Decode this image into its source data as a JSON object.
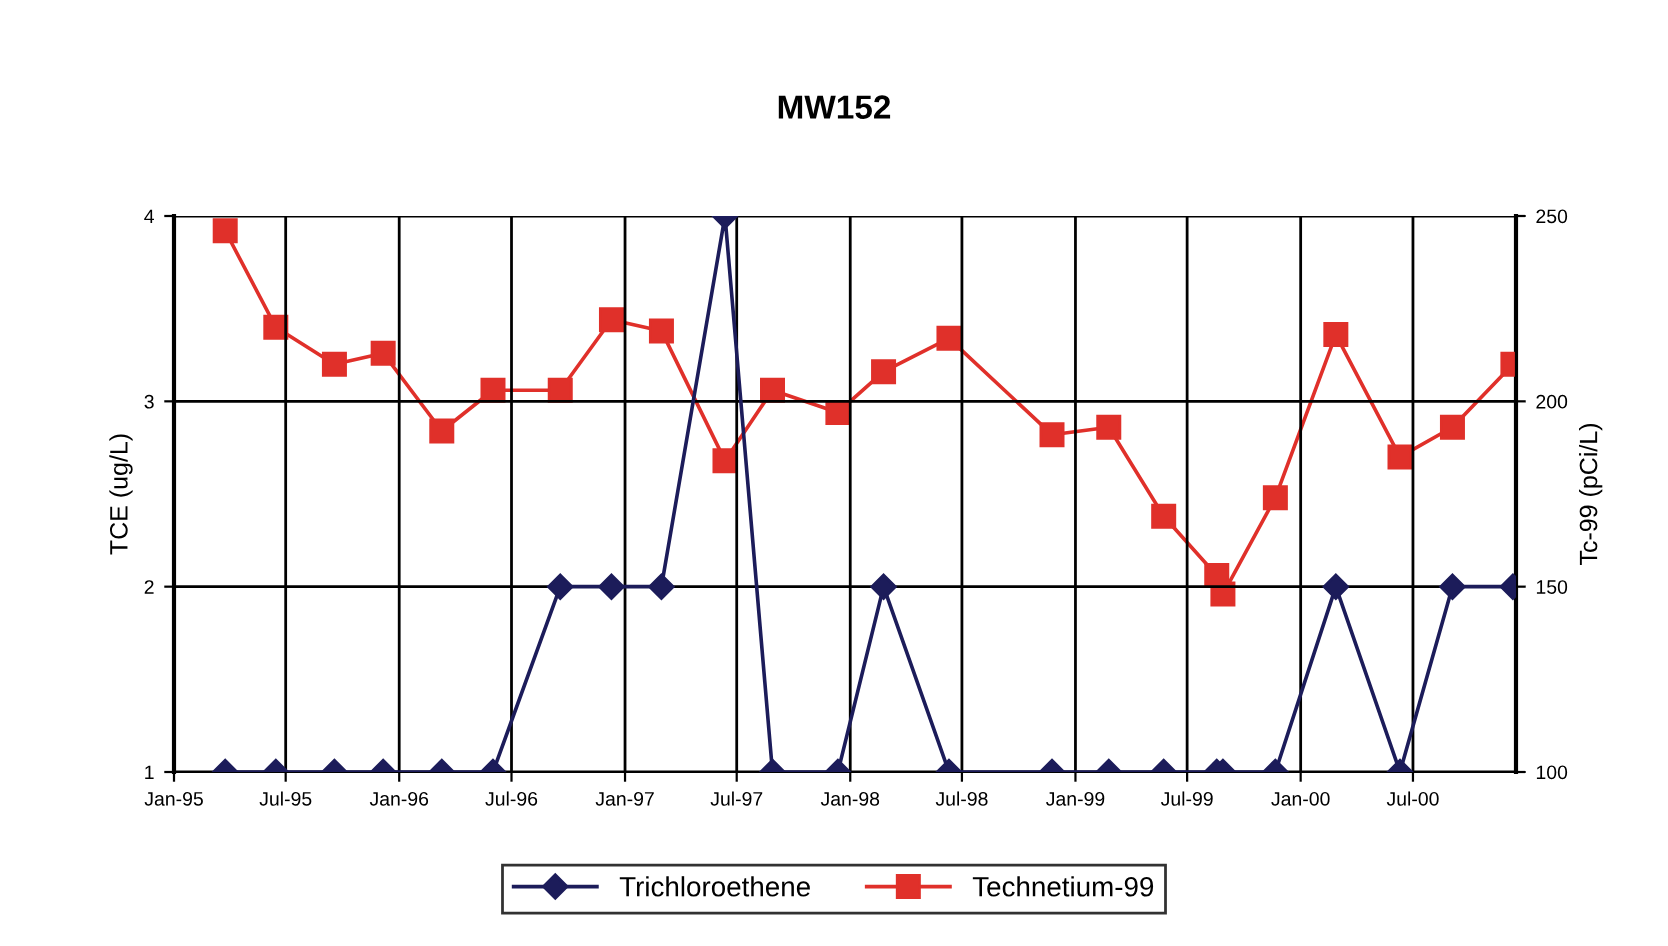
{
  "chart_data": {
    "type": "line",
    "title": "MW152",
    "ylabel": "TCE (ug/L)",
    "y2label": "Tc-99 (pCi/L)",
    "x": [
      "1995-03-25",
      "1995-06-15",
      "1995-09-18",
      "1995-12-06",
      "1996-03-10",
      "1996-06-01",
      "1996-09-18",
      "1996-12-10",
      "1997-03-01",
      "1997-06-12",
      "1997-08-28",
      "1997-12-12",
      "1998-02-24",
      "1998-06-10",
      "1998-11-24",
      "1999-02-24",
      "1999-05-24",
      "1999-08-18",
      "1999-08-28",
      "1999-11-21",
      "2000-02-27",
      "2000-06-10",
      "2000-09-03",
      "2000-12-10"
    ],
    "series": [
      {
        "name": "Trichloroethene",
        "color": "#1c1c5a",
        "marker": "diamond",
        "values": [
          1,
          1,
          1,
          1,
          1,
          1,
          2,
          2,
          2,
          4,
          1,
          1,
          2,
          1,
          1,
          1,
          1,
          1,
          1,
          1,
          2,
          1,
          2,
          2
        ]
      },
      {
        "name": "Technetium-99",
        "color": "#e0302a",
        "marker": "square",
        "axis": "y2",
        "values": [
          246,
          220,
          210,
          213,
          192,
          203,
          203,
          222,
          219,
          184,
          203,
          197,
          208,
          217,
          191,
          193,
          169,
          153,
          148,
          174,
          218,
          185,
          193,
          210
        ]
      }
    ],
    "xlim": [
      "1995-01-01",
      "2000-12-15"
    ],
    "xticks": [
      {
        "value": "1995-01-01",
        "label": "Jan-95"
      },
      {
        "value": "1995-07-01",
        "label": "Jul-95"
      },
      {
        "value": "1996-01-01",
        "label": "Jan-96"
      },
      {
        "value": "1996-07-01",
        "label": "Jul-96"
      },
      {
        "value": "1997-01-01",
        "label": "Jan-97"
      },
      {
        "value": "1997-07-01",
        "label": "Jul-97"
      },
      {
        "value": "1998-01-01",
        "label": "Jan-98"
      },
      {
        "value": "1998-07-01",
        "label": "Jul-98"
      },
      {
        "value": "1999-01-01",
        "label": "Jan-99"
      },
      {
        "value": "1999-07-01",
        "label": "Jul-99"
      },
      {
        "value": "2000-01-01",
        "label": "Jan-00"
      },
      {
        "value": "2000-07-01",
        "label": "Jul-00"
      }
    ],
    "ylim": [
      1,
      4
    ],
    "yticks": [
      1,
      2,
      3,
      4
    ],
    "y2lim": [
      100,
      250
    ],
    "y2ticks": [
      100,
      150,
      200,
      250
    ],
    "grid": true,
    "legend": "bottom",
    "line_style": "solid"
  }
}
